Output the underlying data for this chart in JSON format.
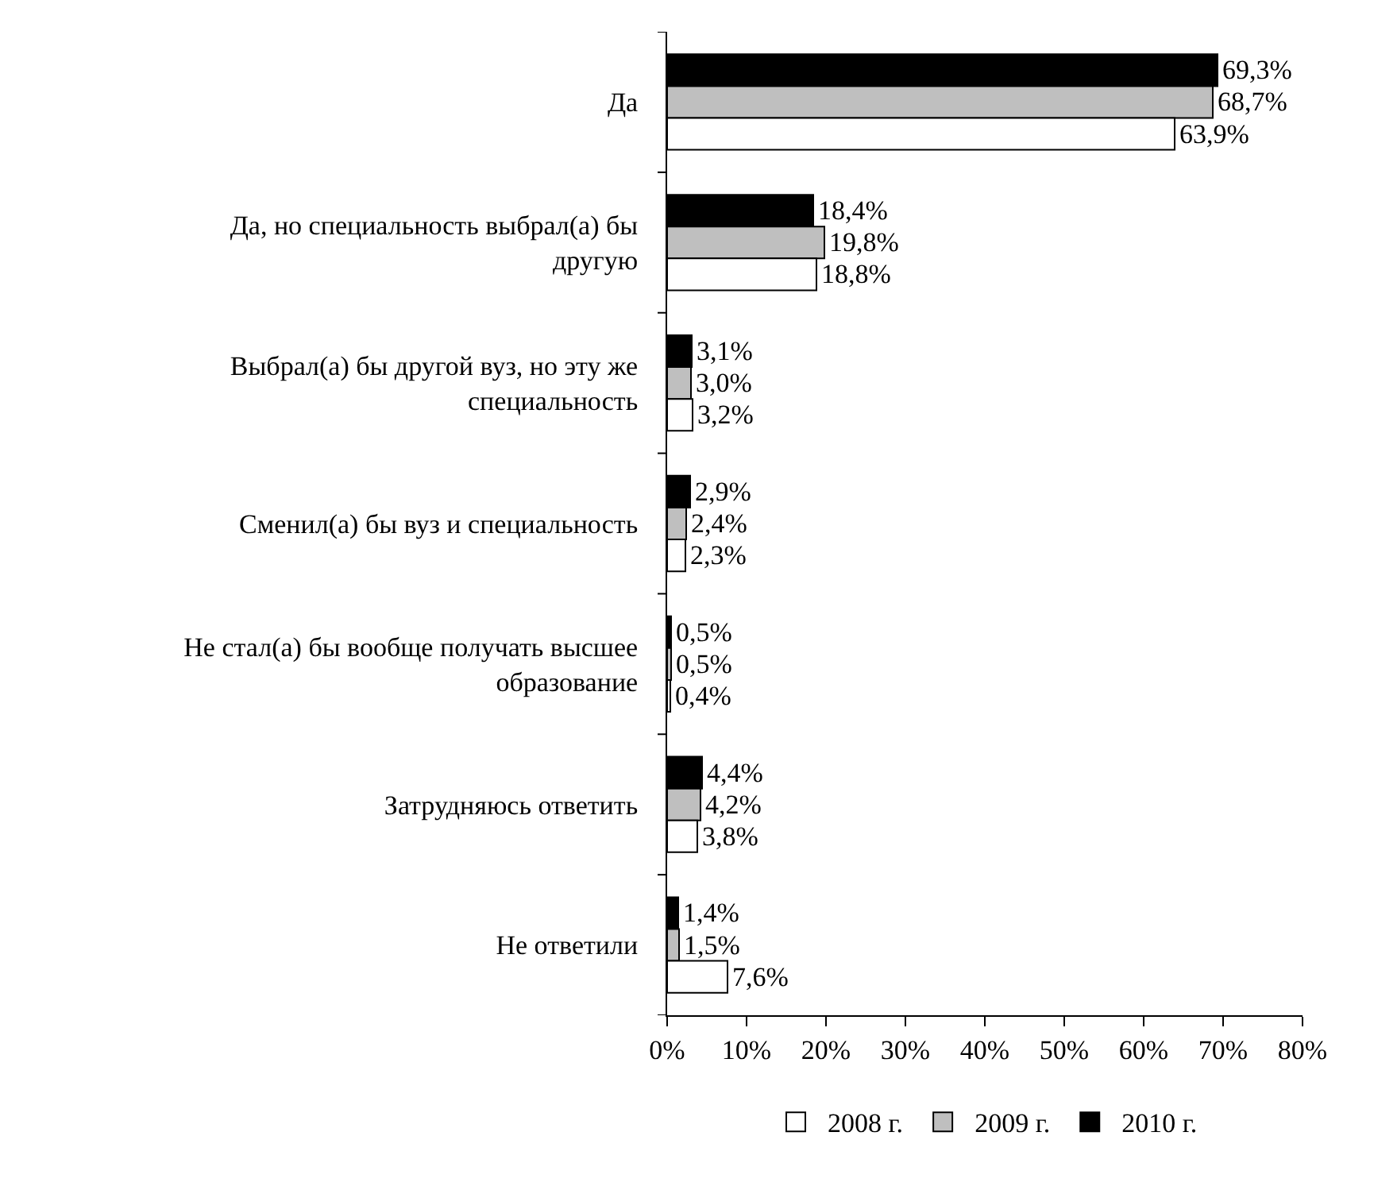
{
  "chart_data": {
    "type": "bar",
    "orientation": "horizontal",
    "categories": [
      "Да",
      "Да, но специальность выбрал(а) бы другую",
      "Выбрал(а) бы другой вуз, но эту же специальность",
      "Сменил(а) бы вуз и специальность",
      "Не стал(а) бы вообще получать высшее образование",
      "Затрудняюсь ответить",
      "Не ответили"
    ],
    "series": [
      {
        "name": "2008 г.",
        "color": "#ffffff",
        "values": [
          63.9,
          18.8,
          3.2,
          2.3,
          0.4,
          3.8,
          7.6
        ],
        "value_labels": [
          "63,9%",
          "18,8%",
          "3,2%",
          "2,3%",
          "0,4%",
          "3,8%",
          "7,6%"
        ]
      },
      {
        "name": "2009 г.",
        "color": "#bfbfbf",
        "values": [
          68.7,
          19.8,
          3.0,
          2.4,
          0.5,
          4.2,
          1.5
        ],
        "value_labels": [
          "68,7%",
          "19,8%",
          "3,0%",
          "2,4%",
          "0,5%",
          "4,2%",
          "1,5%"
        ]
      },
      {
        "name": "2010 г.",
        "color": "#000000",
        "values": [
          69.3,
          18.4,
          3.1,
          2.9,
          0.5,
          4.4,
          1.4
        ],
        "value_labels": [
          "69,3%",
          "18,4%",
          "3,1%",
          "2,9%",
          "0,5%",
          "4,4%",
          "1,4%"
        ]
      }
    ],
    "xlim": [
      0,
      80
    ],
    "xticks": [
      {
        "value": 0,
        "label": "0%"
      },
      {
        "value": 10,
        "label": "10%"
      },
      {
        "value": 20,
        "label": "20%"
      },
      {
        "value": 30,
        "label": "30%"
      },
      {
        "value": 40,
        "label": "40%"
      },
      {
        "value": 50,
        "label": "50%"
      },
      {
        "value": 60,
        "label": "60%"
      },
      {
        "value": 70,
        "label": "70%"
      },
      {
        "value": 80,
        "label": "80%"
      }
    ],
    "grid": false,
    "legend": "bottom"
  }
}
